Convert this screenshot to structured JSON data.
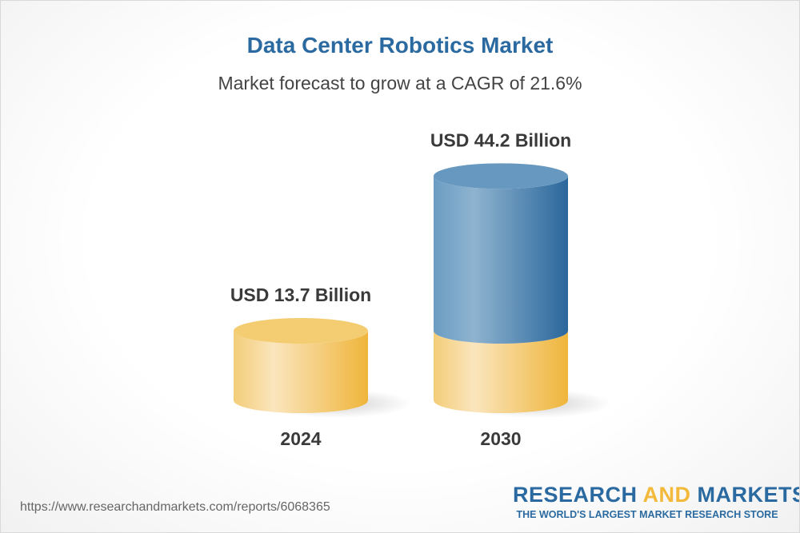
{
  "chart_data": {
    "type": "bar",
    "title": "Data Center Robotics Market",
    "subtitle": "Market forecast to grow at a CAGR of 21.6%",
    "categories": [
      "2024",
      "2030"
    ],
    "values": [
      13.7,
      44.2
    ],
    "data_labels": [
      "USD 13.7 Billion",
      "USD 44.2 Billion"
    ],
    "unit": "USD Billion",
    "style": "3d-cylinder",
    "colors": {
      "base": "#f2c25a",
      "growth": "#5a8fbb"
    }
  },
  "footer": {
    "url": "https://www.researchandmarkets.com/reports/6068365",
    "logo_research": "RESEARCH",
    "logo_and": "AND",
    "logo_markets": "MARKETS",
    "logo_tagline": "THE WORLD'S LARGEST MARKET RESEARCH STORE"
  }
}
